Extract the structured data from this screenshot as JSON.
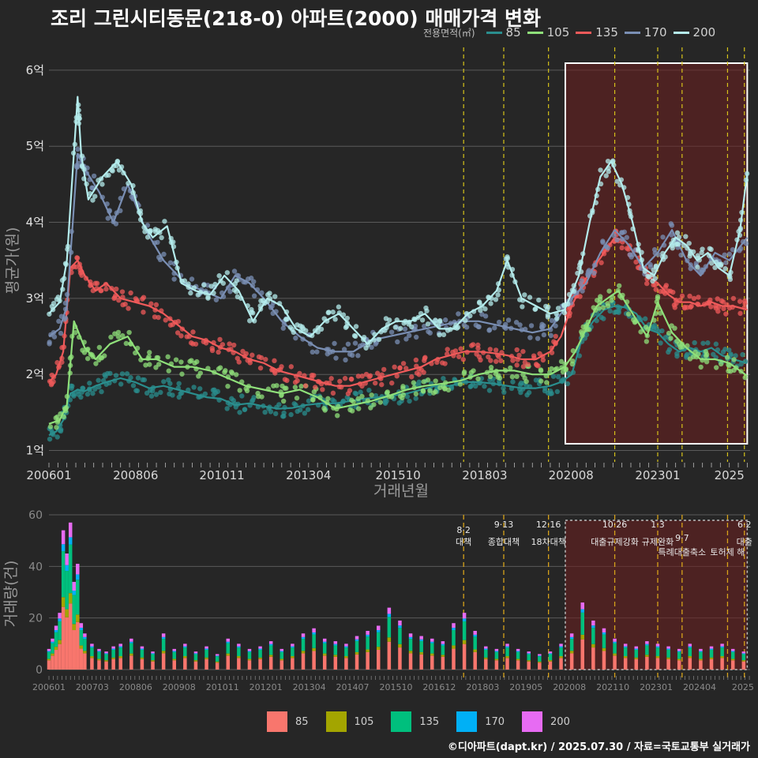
{
  "title": "조리 그린시티동문(218-0) 아파트(2000) 매매가격 변화",
  "legend_title": "전용면적(㎡)",
  "credit": "©디아파트(dapt.kr) / 2025.07.30 / 자료=국토교통부 실거래가",
  "chart_data": [
    {
      "type": "line",
      "title": "조리 그린시티동문(218-0) 아파트(2000) 매매가격 변화",
      "xlabel": "거래년월",
      "ylabel": "평균가(원)",
      "xlim": [
        2006.0,
        2025.58
      ],
      "ylim": [
        0.85,
        6.3
      ],
      "y_ticks": [
        1,
        2,
        3,
        4,
        5,
        6
      ],
      "y_tick_labels": [
        "1억",
        "2억",
        "3억",
        "4억",
        "5억",
        "6억"
      ],
      "x_tick_labels": [
        "200601",
        "200806",
        "201011",
        "201304",
        "201510",
        "201803",
        "202008",
        "202301",
        "2025"
      ],
      "x_tick_values": [
        2006.0,
        2008.42,
        2010.83,
        2013.25,
        2015.75,
        2018.17,
        2020.58,
        2023.0,
        2025.0
      ],
      "grid": true,
      "legend_position": "top-right",
      "highlight_region": [
        2020.42,
        2025.5
      ],
      "policy_lines": [
        2017.58,
        2018.7,
        2019.95,
        2021.8,
        2023.0,
        2023.68,
        2024.95,
        2025.42
      ],
      "series": [
        {
          "name": "85",
          "color": "#2a8e8e",
          "x": [
            2006.0,
            2006.2,
            2006.4,
            2006.6,
            2006.8,
            2007.0,
            2007.3,
            2007.6,
            2008.0,
            2008.4,
            2008.8,
            2009.2,
            2009.6,
            2010.0,
            2010.4,
            2010.8,
            2011.2,
            2011.6,
            2012.0,
            2012.4,
            2012.8,
            2013.2,
            2013.6,
            2014.0,
            2014.4,
            2014.8,
            2015.2,
            2015.6,
            2016.0,
            2016.4,
            2016.8,
            2017.2,
            2017.6,
            2018.0,
            2018.4,
            2018.8,
            2019.2,
            2019.6,
            2020.0,
            2020.3,
            2020.6,
            2020.9,
            2021.2,
            2021.5,
            2021.8,
            2022.1,
            2022.4,
            2022.7,
            2023.0,
            2023.3,
            2023.6,
            2023.9,
            2024.2,
            2024.5,
            2024.8,
            2025.1,
            2025.5
          ],
          "y": [
            1.2,
            1.25,
            1.4,
            1.75,
            1.8,
            1.78,
            1.85,
            1.9,
            1.95,
            1.9,
            1.82,
            1.85,
            1.8,
            1.75,
            1.7,
            1.68,
            1.6,
            1.62,
            1.58,
            1.55,
            1.56,
            1.6,
            1.62,
            1.62,
            1.65,
            1.68,
            1.7,
            1.72,
            1.75,
            1.8,
            1.85,
            1.85,
            1.9,
            1.9,
            1.88,
            1.85,
            1.82,
            1.82,
            1.85,
            1.9,
            2.0,
            2.5,
            2.7,
            2.85,
            2.9,
            2.88,
            2.8,
            2.6,
            2.55,
            2.4,
            2.3,
            2.35,
            2.3,
            2.35,
            2.25,
            2.2,
            2.15
          ]
        },
        {
          "name": "105",
          "color": "#8fe07a",
          "x": [
            2006.0,
            2006.3,
            2006.5,
            2006.7,
            2007.0,
            2007.3,
            2007.7,
            2008.2,
            2008.6,
            2009.0,
            2009.5,
            2010.0,
            2010.5,
            2011.0,
            2011.5,
            2012.0,
            2012.5,
            2013.0,
            2013.5,
            2014.0,
            2014.5,
            2015.0,
            2015.5,
            2016.0,
            2016.5,
            2017.0,
            2017.5,
            2018.0,
            2018.5,
            2019.0,
            2019.5,
            2020.0,
            2020.4,
            2020.7,
            2021.0,
            2021.3,
            2021.6,
            2021.9,
            2022.3,
            2022.7,
            2023.0,
            2023.4,
            2023.8,
            2024.2,
            2024.6,
            2025.0,
            2025.5
          ],
          "y": [
            1.35,
            1.4,
            1.6,
            2.7,
            2.35,
            2.2,
            2.4,
            2.5,
            2.2,
            2.2,
            2.1,
            2.1,
            2.05,
            1.95,
            1.85,
            1.8,
            1.75,
            1.8,
            1.7,
            1.55,
            1.6,
            1.65,
            1.72,
            1.8,
            1.85,
            1.88,
            1.92,
            2.0,
            2.05,
            2.05,
            2.0,
            2.0,
            2.1,
            2.3,
            2.6,
            2.9,
            3.0,
            3.1,
            2.8,
            2.5,
            2.95,
            2.55,
            2.35,
            2.2,
            2.2,
            2.15,
            1.98
          ]
        },
        {
          "name": "135",
          "color": "#f05a5a",
          "x": [
            2006.0,
            2006.2,
            2006.4,
            2006.6,
            2006.8,
            2007.0,
            2007.3,
            2007.6,
            2008.0,
            2008.4,
            2008.8,
            2009.2,
            2009.6,
            2010.0,
            2010.4,
            2010.8,
            2011.2,
            2011.6,
            2012.0,
            2012.4,
            2012.8,
            2013.2,
            2013.6,
            2014.0,
            2014.4,
            2014.8,
            2015.2,
            2015.6,
            2016.0,
            2016.4,
            2016.8,
            2017.2,
            2017.6,
            2018.0,
            2018.4,
            2018.8,
            2019.2,
            2019.6,
            2020.0,
            2020.3,
            2020.6,
            2020.9,
            2021.2,
            2021.5,
            2021.8,
            2022.1,
            2022.4,
            2022.7,
            2023.0,
            2023.3,
            2023.6,
            2023.9,
            2024.2,
            2024.5,
            2024.8,
            2025.1,
            2025.5
          ],
          "y": [
            1.9,
            2.0,
            2.3,
            3.4,
            3.5,
            3.3,
            3.1,
            3.2,
            3.0,
            2.95,
            2.9,
            2.8,
            2.65,
            2.5,
            2.45,
            2.35,
            2.3,
            2.2,
            2.15,
            2.05,
            2.0,
            1.95,
            1.9,
            1.85,
            1.85,
            1.9,
            1.95,
            2.0,
            2.05,
            2.1,
            2.2,
            2.25,
            2.3,
            2.3,
            2.28,
            2.25,
            2.2,
            2.2,
            2.3,
            2.5,
            2.9,
            3.2,
            3.4,
            3.6,
            3.8,
            3.75,
            3.55,
            3.3,
            3.2,
            3.05,
            2.95,
            2.95,
            2.9,
            2.95,
            2.9,
            2.9,
            2.85
          ]
        },
        {
          "name": "170",
          "color": "#7a8fb4",
          "x": [
            2006.0,
            2006.3,
            2006.5,
            2006.8,
            2007.0,
            2007.4,
            2007.8,
            2008.2,
            2008.7,
            2009.2,
            2009.8,
            2010.3,
            2010.8,
            2011.2,
            2011.6,
            2012.0,
            2012.5,
            2013.0,
            2013.5,
            2014.0,
            2014.5,
            2015.0,
            2015.5,
            2016.0,
            2016.5,
            2017.0,
            2017.5,
            2018.0,
            2018.5,
            2019.0,
            2019.5,
            2020.0,
            2020.3,
            2020.6,
            2021.0,
            2021.4,
            2021.8,
            2022.2,
            2022.6,
            2023.0,
            2023.4,
            2023.8,
            2024.2,
            2024.6,
            2025.0,
            2025.5
          ],
          "y": [
            2.5,
            2.6,
            2.9,
            4.9,
            4.7,
            4.4,
            4.0,
            4.5,
            3.9,
            3.5,
            3.2,
            3.1,
            3.0,
            3.3,
            3.2,
            3.0,
            2.7,
            2.5,
            2.35,
            2.3,
            2.3,
            2.45,
            2.5,
            2.55,
            2.6,
            2.65,
            2.7,
            2.7,
            2.65,
            2.6,
            2.55,
            2.6,
            2.8,
            3.0,
            3.2,
            3.6,
            3.9,
            3.7,
            3.4,
            3.6,
            3.9,
            3.5,
            3.3,
            3.6,
            3.5,
            3.8
          ]
        },
        {
          "name": "200",
          "color": "#b4ecec",
          "x": [
            2006.0,
            2006.3,
            2006.5,
            2006.8,
            2006.9,
            2007.1,
            2007.5,
            2007.9,
            2008.3,
            2008.6,
            2008.9,
            2009.3,
            2009.7,
            2010.1,
            2010.5,
            2010.9,
            2011.3,
            2011.7,
            2012.1,
            2012.5,
            2012.9,
            2013.3,
            2013.7,
            2014.1,
            2014.5,
            2014.9,
            2015.3,
            2015.7,
            2016.1,
            2016.5,
            2016.9,
            2017.3,
            2017.7,
            2018.1,
            2018.5,
            2018.8,
            2019.2,
            2019.6,
            2020.0,
            2020.4,
            2020.8,
            2021.1,
            2021.4,
            2021.7,
            2022.0,
            2022.3,
            2022.6,
            2022.9,
            2023.2,
            2023.5,
            2023.8,
            2024.1,
            2024.4,
            2024.7,
            2025.0,
            2025.3,
            2025.5
          ],
          "y": [
            2.8,
            2.95,
            3.5,
            5.65,
            4.9,
            4.3,
            4.6,
            4.8,
            4.5,
            4.0,
            3.8,
            3.95,
            3.2,
            3.1,
            3.05,
            3.3,
            3.1,
            2.7,
            3.0,
            2.9,
            2.6,
            2.5,
            2.7,
            2.8,
            2.6,
            2.4,
            2.6,
            2.7,
            2.7,
            2.8,
            2.6,
            2.6,
            2.8,
            2.9,
            3.1,
            3.5,
            3.0,
            2.9,
            2.8,
            2.85,
            3.3,
            4.0,
            4.6,
            4.8,
            4.5,
            4.0,
            3.4,
            3.3,
            3.6,
            3.8,
            3.7,
            3.5,
            3.6,
            3.4,
            3.3,
            3.9,
            4.65
          ]
        }
      ]
    },
    {
      "type": "bar",
      "xlabel": "",
      "ylabel": "거래량(건)",
      "ylim": [
        0,
        60
      ],
      "y_ticks": [
        0,
        20,
        40,
        60
      ],
      "x_tick_labels": [
        "200601",
        "200703",
        "200806",
        "200908",
        "201011",
        "201201",
        "201304",
        "201407",
        "201510",
        "201612",
        "201803",
        "201905",
        "202008",
        "202110",
        "202301",
        "202404",
        "2025"
      ],
      "legend_position": "bottom",
      "stacked": true,
      "events": [
        {
          "date": "8·2",
          "label": "대책",
          "x": 2017.58
        },
        {
          "date": "9·13",
          "label": "종합대책",
          "x": 2018.7
        },
        {
          "date": "12·16",
          "label": "18차대책",
          "x": 2019.95
        },
        {
          "date": "10·26",
          "label": "대출규제강화",
          "x": 2021.8
        },
        {
          "date": "1·3",
          "label": "규제완화",
          "x": 2023.0
        },
        {
          "date": "9·7",
          "label": "특례대출축소",
          "x": 2023.68
        },
        {
          "date": "토허제 해",
          "label": "",
          "x": 2024.95
        },
        {
          "date": "6·2",
          "label": "대출",
          "x": 2025.42
        }
      ],
      "series": [
        {
          "name": "85",
          "color": "#f8766d"
        },
        {
          "name": "105",
          "color": "#a3a500"
        },
        {
          "name": "135",
          "color": "#00bf7d"
        },
        {
          "name": "170",
          "color": "#00b0f6"
        },
        {
          "name": "200",
          "color": "#e76bf3"
        }
      ],
      "totals": {
        "x": [
          2006.0,
          2006.1,
          2006.2,
          2006.3,
          2006.4,
          2006.5,
          2006.6,
          2006.7,
          2006.8,
          2006.9,
          2007.0,
          2007.2,
          2007.4,
          2007.6,
          2007.8,
          2008.0,
          2008.3,
          2008.6,
          2008.9,
          2009.2,
          2009.5,
          2009.8,
          2010.1,
          2010.4,
          2010.7,
          2011.0,
          2011.3,
          2011.6,
          2011.9,
          2012.2,
          2012.5,
          2012.8,
          2013.1,
          2013.4,
          2013.7,
          2014.0,
          2014.3,
          2014.6,
          2014.9,
          2015.2,
          2015.5,
          2015.8,
          2016.1,
          2016.4,
          2016.7,
          2017.0,
          2017.3,
          2017.6,
          2017.9,
          2018.2,
          2018.5,
          2018.8,
          2019.1,
          2019.4,
          2019.7,
          2020.0,
          2020.3,
          2020.6,
          2020.9,
          2021.2,
          2021.5,
          2021.8,
          2022.1,
          2022.4,
          2022.7,
          2023.0,
          2023.3,
          2023.6,
          2023.9,
          2024.2,
          2024.5,
          2024.8,
          2025.1,
          2025.4
        ],
        "values": [
          8,
          12,
          17,
          22,
          54,
          45,
          57,
          34,
          41,
          18,
          14,
          10,
          8,
          7,
          9,
          10,
          12,
          9,
          7,
          14,
          8,
          10,
          7,
          9,
          6,
          12,
          10,
          8,
          9,
          11,
          8,
          10,
          14,
          16,
          12,
          11,
          10,
          13,
          15,
          17,
          24,
          19,
          14,
          13,
          12,
          11,
          18,
          22,
          15,
          9,
          8,
          10,
          8,
          7,
          6,
          7,
          10,
          14,
          26,
          19,
          16,
          12,
          10,
          9,
          11,
          10,
          9,
          8,
          10,
          8,
          9,
          10,
          8,
          7
        ]
      }
    }
  ]
}
